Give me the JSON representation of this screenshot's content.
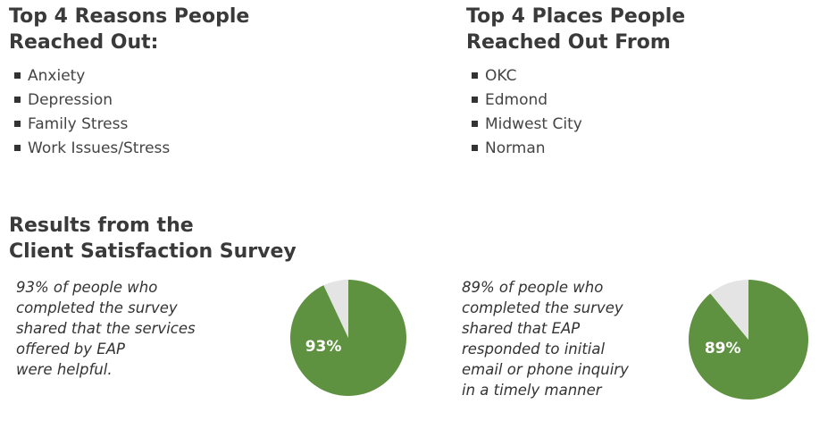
{
  "reasons": {
    "title_lines": [
      "Top 4 Reasons People",
      "Reached Out:"
    ],
    "items": [
      "Anxiety",
      "Depression",
      "Family Stress",
      "Work Issues/Stress"
    ]
  },
  "places": {
    "title_lines": [
      "Top 4 Places People",
      "Reached Out From"
    ],
    "items": [
      "OKC",
      "Edmond",
      "Midwest City",
      "Norman"
    ]
  },
  "survey": {
    "title_lines": [
      "Results from the",
      "Client Satisfaction Survey"
    ],
    "charts": [
      {
        "type": "pie",
        "text_lines": [
          "93% of people who",
          "completed the survey",
          "shared that the services",
          "offered by EAP",
          "were helpful."
        ],
        "values": [
          93,
          7
        ],
        "value_labels": [
          "93%",
          null
        ],
        "colors": [
          "#5e9140",
          "#e4e4e4"
        ]
      },
      {
        "type": "pie",
        "text_lines": [
          "89% of people who",
          "completed the survey",
          "shared that EAP",
          "responded to initial",
          "email or phone inquiry",
          "in a timely manner"
        ],
        "values": [
          89,
          11
        ],
        "value_labels": [
          "89%",
          null
        ],
        "colors": [
          "#5e9140",
          "#e4e4e4"
        ]
      }
    ]
  }
}
